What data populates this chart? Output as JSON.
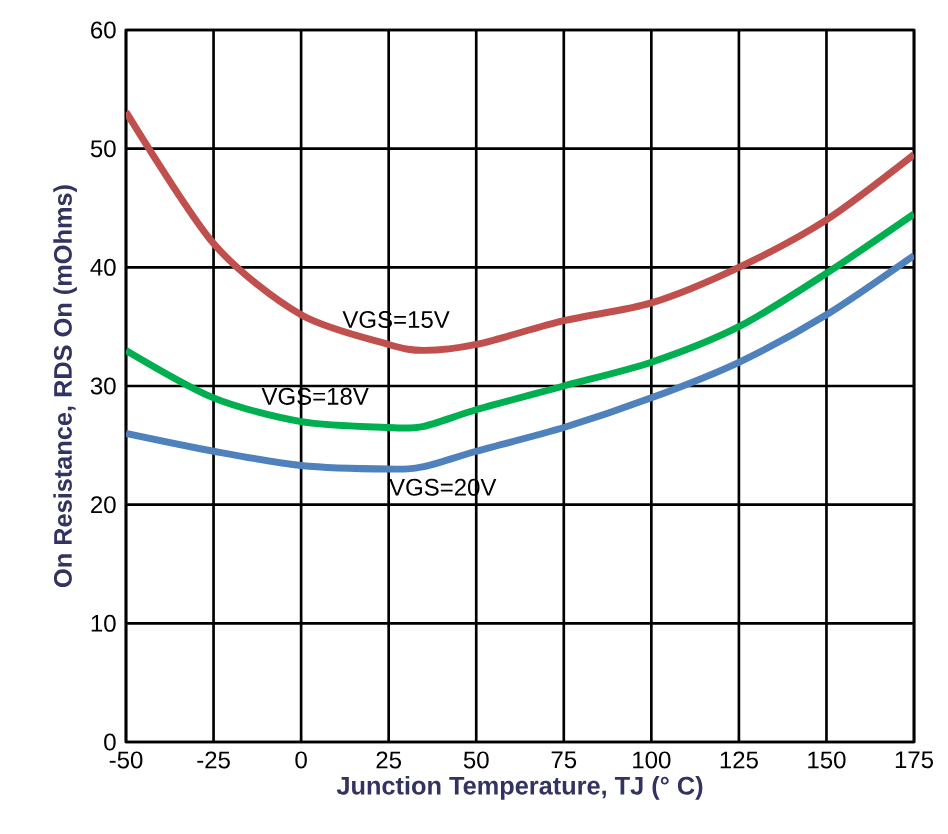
{
  "chart_data": {
    "type": "line",
    "xlabel": "Junction Temperature, TJ (° C)",
    "ylabel": "On Resistance, RDS On (mOhms)",
    "x": [
      -50,
      -25,
      0,
      25,
      35,
      50,
      75,
      100,
      125,
      150,
      175
    ],
    "series": [
      {
        "name": "VGS=15V",
        "color": "#c0504d",
        "values": [
          53.1,
          42,
          36,
          33.5,
          33,
          33.5,
          35.5,
          37,
          40,
          44,
          49.5
        ]
      },
      {
        "name": "VGS=18V",
        "color": "#00b050",
        "values": [
          33,
          29,
          27,
          26.5,
          26.6,
          28,
          30,
          32,
          35,
          39.5,
          44.5
        ]
      },
      {
        "name": "VGS=20V",
        "color": "#4f81bd",
        "values": [
          26,
          24.5,
          23.3,
          23,
          23.2,
          24.5,
          26.5,
          29,
          32,
          36,
          41
        ]
      }
    ],
    "xlim": [
      -50,
      175
    ],
    "ylim": [
      0,
      60
    ],
    "xticks": [
      -50,
      -25,
      0,
      25,
      50,
      75,
      100,
      125,
      150,
      175
    ],
    "yticks": [
      0,
      10,
      20,
      30,
      40,
      50,
      60
    ],
    "grid": true,
    "marker": "none",
    "line_style": "solid"
  }
}
